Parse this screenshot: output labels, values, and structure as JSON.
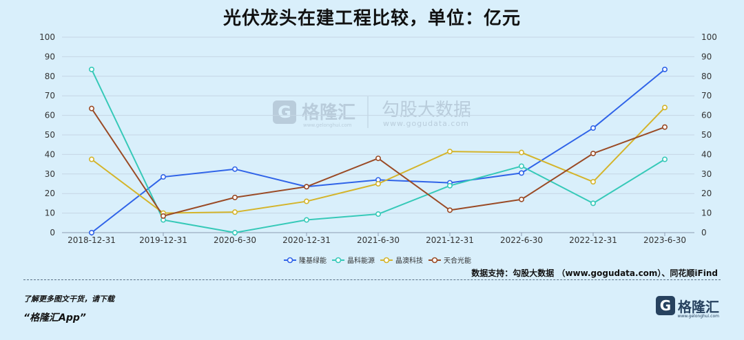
{
  "title": "光伏龙头在建工程比较，单位：亿元",
  "source": "数据支持：勾股大数据 （www.gogudata.com）、同花顺iFind",
  "watermark": {
    "brand": "格隆汇",
    "brand_url": "www.gelonghui.com",
    "partner": "勾股大数据",
    "partner_url": "www.gogudata.com"
  },
  "footer": {
    "line1": "了解更多图文干货，请下载",
    "line2": "“格隆汇App”",
    "logo_text": "格隆汇",
    "logo_url": "www.gelonghui.com",
    "logo_letter": "G"
  },
  "chart_data": {
    "type": "line",
    "categories": [
      "2018-12-31",
      "2019-12-31",
      "2020-6-30",
      "2020-12-31",
      "2021-6-30",
      "2021-12-31",
      "2022-6-30",
      "2022-12-31",
      "2023-6-30"
    ],
    "ylim": [
      0,
      100
    ],
    "yticks": [
      0,
      10,
      20,
      30,
      40,
      50,
      60,
      70,
      80,
      90,
      100
    ],
    "y2lim": [
      0,
      100
    ],
    "grid": true,
    "legend_position": "bottom-center",
    "series": [
      {
        "name": "隆基绿能",
        "color": "#2f63e8",
        "values": [
          0,
          28.5,
          32.5,
          23.5,
          27,
          25.5,
          30.5,
          53.5,
          83.5
        ]
      },
      {
        "name": "晶科能源",
        "color": "#36c9b8",
        "values": [
          83.5,
          6.5,
          0,
          6.5,
          9.5,
          24,
          34,
          15,
          37.5
        ]
      },
      {
        "name": "晶澳科技",
        "color": "#d4b42a",
        "values": [
          37.5,
          10,
          10.5,
          16,
          25,
          41.5,
          41,
          26,
          64
        ]
      },
      {
        "name": "天合光能",
        "color": "#9a4a25",
        "values": [
          63.5,
          8.5,
          18,
          23.5,
          38,
          11.5,
          17,
          40.5,
          54
        ]
      }
    ]
  }
}
